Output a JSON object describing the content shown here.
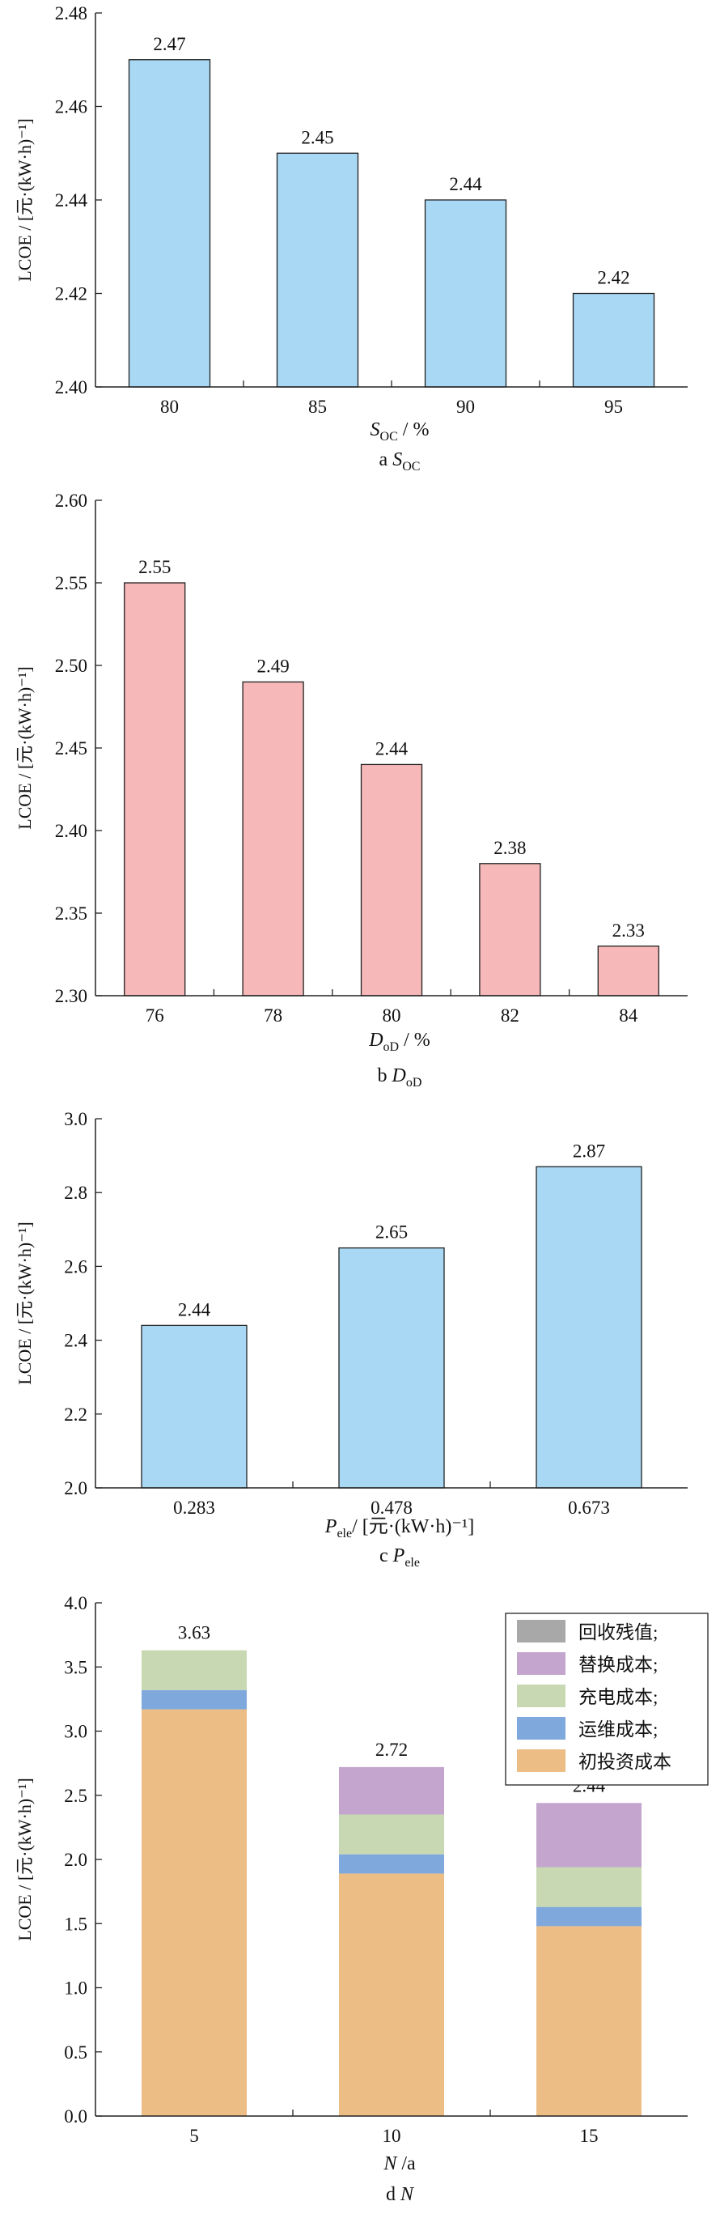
{
  "colors": {
    "blue_bar": "#a8d8f4",
    "pink_bar": "#f6b8b9",
    "gray": "#a8a8a8",
    "purple": "#c3a5cd",
    "green": "#c8d8b2",
    "steel_blue": "#7fa8dc",
    "orange": "#edbd86",
    "axis": "#222222"
  },
  "chart_data": [
    {
      "id": "a",
      "type": "bar",
      "categories": [
        "80",
        "85",
        "90",
        "95"
      ],
      "values": [
        2.47,
        2.45,
        2.44,
        2.42
      ],
      "value_labels": [
        "2.47",
        "2.45",
        "2.44",
        "2.42"
      ],
      "ylabel": "LCOE / [元·(kW·h)⁻¹]",
      "xlabel": {
        "main": "S",
        "sub": "OC",
        "tail": " / %"
      },
      "caption": {
        "letter": "a ",
        "main": "S",
        "sub": "OC"
      },
      "ylim": [
        2.4,
        2.48
      ],
      "yticks": [
        "2.40",
        "2.42",
        "2.44",
        "2.46",
        "2.48"
      ],
      "color": "#a8d8f4",
      "grid": false
    },
    {
      "id": "b",
      "type": "bar",
      "categories": [
        "76",
        "78",
        "80",
        "82",
        "84"
      ],
      "values": [
        2.55,
        2.49,
        2.44,
        2.38,
        2.33
      ],
      "value_labels": [
        "2.55",
        "2.49",
        "2.44",
        "2.38",
        "2.33"
      ],
      "ylabel": "LCOE / [元·(kW·h)⁻¹]",
      "xlabel": {
        "main": "D",
        "sub": "oD",
        "tail": " / %"
      },
      "caption": {
        "letter": "b ",
        "main": "D",
        "sub": "oD"
      },
      "ylim": [
        2.3,
        2.6
      ],
      "yticks": [
        "2.30",
        "2.35",
        "2.40",
        "2.45",
        "2.50",
        "2.55",
        "2.60"
      ],
      "color": "#f6b8b9",
      "grid": false
    },
    {
      "id": "c",
      "type": "bar",
      "categories": [
        "0.283",
        "0.478",
        "0.673"
      ],
      "values": [
        2.44,
        2.65,
        2.87
      ],
      "value_labels": [
        "2.44",
        "2.65",
        "2.87"
      ],
      "ylabel": "LCOE / [元·(kW·h)⁻¹]",
      "xlabel": {
        "main": "P",
        "sub": "ele",
        "tail": "/ [元·(kW·h)⁻¹]"
      },
      "caption": {
        "letter": "c ",
        "main": "P",
        "sub": "ele"
      },
      "ylim": [
        2.0,
        3.0
      ],
      "yticks": [
        "2.0",
        "2.2",
        "2.4",
        "2.6",
        "2.8",
        "3.0"
      ],
      "color": "#a8d8f4",
      "grid": false
    },
    {
      "id": "d",
      "type": "bar",
      "stacked": true,
      "categories": [
        "5",
        "10",
        "15"
      ],
      "series": [
        {
          "name": "初投资成本",
          "values": [
            3.17,
            1.89,
            1.48
          ],
          "color": "#edbd86"
        },
        {
          "name": "运维成本;",
          "values": [
            0.15,
            0.15,
            0.15
          ],
          "color": "#7fa8dc"
        },
        {
          "name": "充电成本;",
          "values": [
            0.31,
            0.31,
            0.31
          ],
          "color": "#c8d8b2"
        },
        {
          "name": "替换成本;",
          "values": [
            0.0,
            0.37,
            0.5
          ],
          "color": "#c3a5cd"
        },
        {
          "name": "回收残值;",
          "values": [
            0.0,
            0.0,
            0.0
          ],
          "color": "#a8a8a8"
        }
      ],
      "totals": [
        "3.63",
        "2.72",
        "2.44"
      ],
      "ylabel": "LCOE / [元·(kW·h)⁻¹]",
      "xlabel": {
        "main": "N",
        "sub": "",
        "tail": " /a"
      },
      "caption": {
        "letter": "d ",
        "main": "N",
        "sub": ""
      },
      "ylim": [
        0.0,
        4.0
      ],
      "yticks": [
        "0.0",
        "0.5",
        "1.0",
        "1.5",
        "2.0",
        "2.5",
        "3.0",
        "3.5",
        "4.0"
      ],
      "legend": {
        "position": "top-right",
        "order": [
          "回收残值;",
          "替换成本;",
          "充电成本;",
          "运维成本;",
          "初投资成本"
        ]
      },
      "grid": false
    }
  ]
}
